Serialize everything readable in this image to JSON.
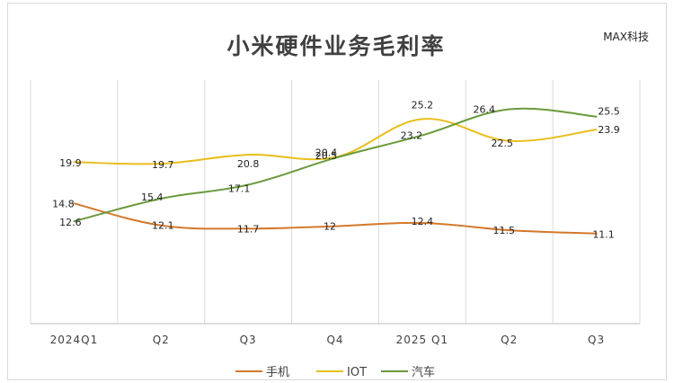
{
  "chart_data": {
    "type": "line",
    "title": "小米硬件业务毛利率",
    "brand": "MAX科技",
    "categories": [
      "2024Q1",
      "Q2",
      "Q3",
      "Q4",
      "2025 Q1",
      "Q2",
      "Q3"
    ],
    "ylim": [
      0,
      30
    ],
    "grid": true,
    "legend_position": "bottom",
    "series": [
      {
        "name": "手机",
        "color": "#D4782B",
        "values": [
          14.8,
          12.1,
          11.7,
          12,
          12.4,
          11.5,
          11.1
        ],
        "labels": [
          "14.8",
          "12.1",
          "11.7",
          "12",
          "12.4",
          "11.5",
          "11.1"
        ]
      },
      {
        "name": "IOT",
        "color": "#E8BE1C",
        "values": [
          19.9,
          19.7,
          20.8,
          20.5,
          25.2,
          22.5,
          23.9
        ],
        "labels": [
          "19.9",
          "19.7",
          "20.8",
          "20.5",
          "25.2",
          "22.5",
          "23.9"
        ]
      },
      {
        "name": "汽车",
        "color": "#6A9A3C",
        "values": [
          12.6,
          15.4,
          17.1,
          20.4,
          23.2,
          26.4,
          25.5
        ],
        "labels": [
          "12.6",
          "15.4",
          "17.1",
          "20.4",
          "23.2",
          "26.4",
          "25.5"
        ]
      }
    ]
  }
}
